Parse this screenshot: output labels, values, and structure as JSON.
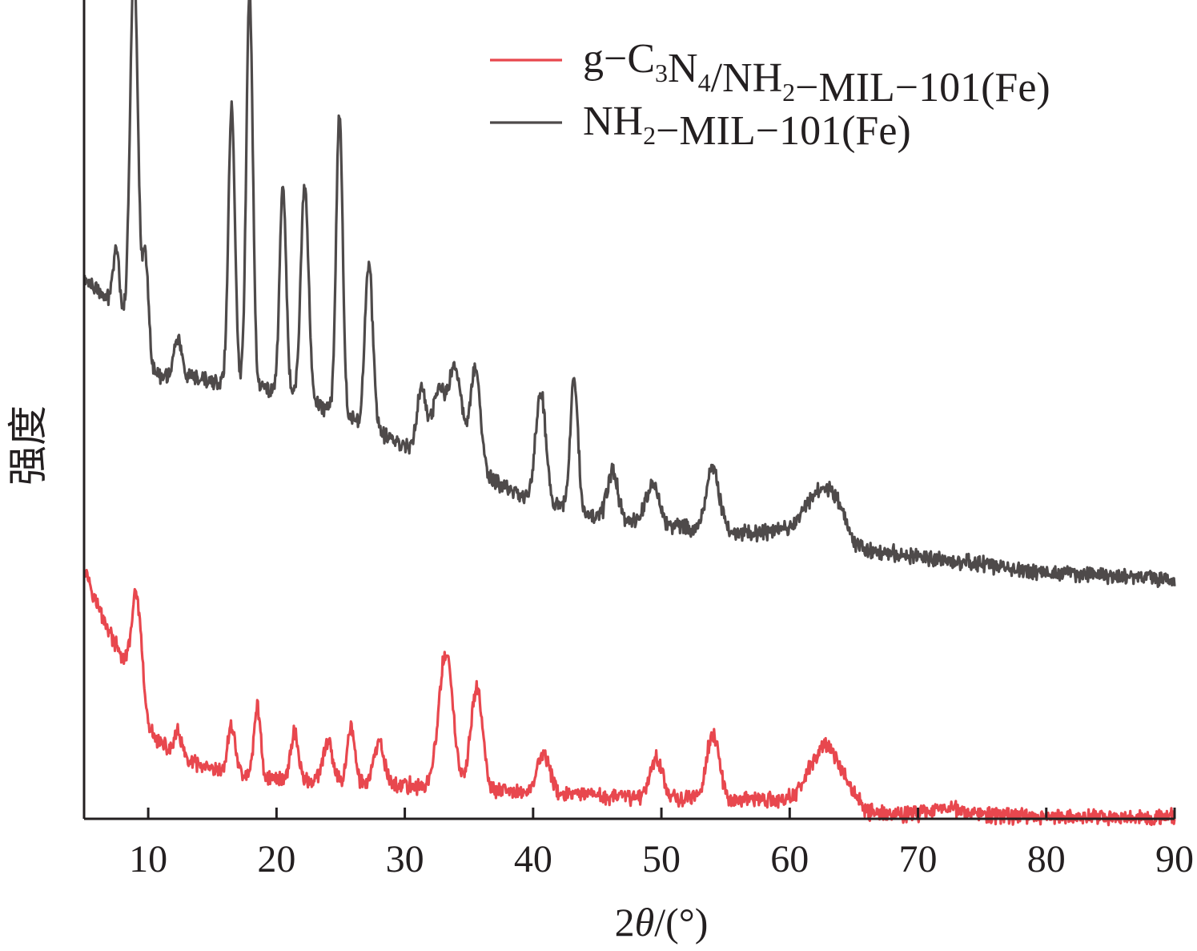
{
  "chart_data": {
    "type": "line",
    "title": "",
    "xlabel": {
      "prefix": "2",
      "symbol": "θ",
      "suffix": "/(°)"
    },
    "ylabel": "强度",
    "xlim": [
      5,
      90
    ],
    "x_ticks": [
      10,
      20,
      30,
      40,
      50,
      60,
      70,
      80,
      90
    ],
    "x_tick_labels": [
      "10",
      "20",
      "30",
      "40",
      "50",
      "60",
      "70",
      "80",
      "90"
    ],
    "y_ticks_shown": false,
    "grid": false,
    "legend_position": "top-right",
    "noise_amplitude": 0.8,
    "series": [
      {
        "name": "g−C3N4/NH2−MIL−101(Fe)",
        "name_parts": [
          {
            "t": "g−C"
          },
          {
            "t": "3",
            "sub": true
          },
          {
            "t": "N"
          },
          {
            "t": "4",
            "sub": true
          },
          {
            "t": "/NH"
          },
          {
            "t": "2",
            "sub": true
          },
          {
            "t": "−MIL−101(Fe)"
          }
        ],
        "color": "#e8474e",
        "offset": 0,
        "baseline": [
          [
            5,
            32
          ],
          [
            6,
            27
          ],
          [
            8,
            20
          ],
          [
            10,
            11
          ],
          [
            12,
            8
          ],
          [
            15,
            6
          ],
          [
            20,
            5
          ],
          [
            30,
            4.2
          ],
          [
            40,
            3.2
          ],
          [
            50,
            2.6
          ],
          [
            60,
            2.3
          ],
          [
            65,
            2.1
          ],
          [
            66,
            0.8
          ],
          [
            70,
            0.6
          ],
          [
            80,
            0.3
          ],
          [
            90,
            0.2
          ]
        ],
        "peaks": [
          {
            "pos": 9.1,
            "height": 13,
            "width": 0.4
          },
          {
            "pos": 12.3,
            "height": 3,
            "width": 0.3
          },
          {
            "pos": 16.5,
            "height": 6,
            "width": 0.3
          },
          {
            "pos": 18.5,
            "height": 9,
            "width": 0.25
          },
          {
            "pos": 21.4,
            "height": 6,
            "width": 0.3
          },
          {
            "pos": 24.0,
            "height": 5,
            "width": 0.35
          },
          {
            "pos": 25.8,
            "height": 7,
            "width": 0.3
          },
          {
            "pos": 28.0,
            "height": 5,
            "width": 0.4
          },
          {
            "pos": 33.2,
            "height": 17,
            "width": 0.55
          },
          {
            "pos": 35.6,
            "height": 13,
            "width": 0.45
          },
          {
            "pos": 40.8,
            "height": 5,
            "width": 0.5
          },
          {
            "pos": 49.6,
            "height": 5,
            "width": 0.5
          },
          {
            "pos": 54.0,
            "height": 8,
            "width": 0.5
          },
          {
            "pos": 62.8,
            "height": 7,
            "width": 1.2
          },
          {
            "pos": 72.2,
            "height": 1,
            "width": 1.0
          }
        ]
      },
      {
        "name": "NH2−MIL−101(Fe)",
        "name_parts": [
          {
            "t": "NH"
          },
          {
            "t": "2",
            "sub": true
          },
          {
            "t": "−MIL−101(Fe)"
          }
        ],
        "color": "#4e4a4a",
        "offset": 0,
        "baseline": [
          [
            5,
            68
          ],
          [
            7,
            65
          ],
          [
            8.5,
            62
          ],
          [
            10,
            56
          ],
          [
            15,
            55
          ],
          [
            20,
            54
          ],
          [
            25,
            51
          ],
          [
            30,
            47
          ],
          [
            35,
            44
          ],
          [
            40,
            40
          ],
          [
            45,
            38
          ],
          [
            50,
            37
          ],
          [
            55,
            36
          ],
          [
            60,
            36
          ],
          [
            64,
            37
          ],
          [
            65,
            34
          ],
          [
            70,
            33
          ],
          [
            80,
            31
          ],
          [
            90,
            30
          ]
        ],
        "peaks": [
          {
            "pos": 7.5,
            "height": 8,
            "width": 0.25
          },
          {
            "pos": 8.9,
            "height": 48,
            "width": 0.3
          },
          {
            "pos": 9.8,
            "height": 14,
            "width": 0.25
          },
          {
            "pos": 12.3,
            "height": 5,
            "width": 0.3
          },
          {
            "pos": 16.5,
            "height": 35,
            "width": 0.25
          },
          {
            "pos": 17.9,
            "height": 50,
            "width": 0.25
          },
          {
            "pos": 20.5,
            "height": 26,
            "width": 0.25
          },
          {
            "pos": 22.2,
            "height": 27,
            "width": 0.3
          },
          {
            "pos": 24.9,
            "height": 38,
            "width": 0.25
          },
          {
            "pos": 27.2,
            "height": 21,
            "width": 0.3
          },
          {
            "pos": 31.3,
            "height": 8,
            "width": 0.35
          },
          {
            "pos": 32.6,
            "height": 8,
            "width": 0.45
          },
          {
            "pos": 33.9,
            "height": 12,
            "width": 0.55
          },
          {
            "pos": 35.5,
            "height": 13,
            "width": 0.4
          },
          {
            "pos": 40.6,
            "height": 14,
            "width": 0.4
          },
          {
            "pos": 43.2,
            "height": 17,
            "width": 0.3
          },
          {
            "pos": 46.2,
            "height": 6,
            "width": 0.4
          },
          {
            "pos": 49.3,
            "height": 5,
            "width": 0.5
          },
          {
            "pos": 54.0,
            "height": 8,
            "width": 0.5
          },
          {
            "pos": 62.5,
            "height": 5,
            "width": 1.3
          }
        ]
      }
    ]
  }
}
